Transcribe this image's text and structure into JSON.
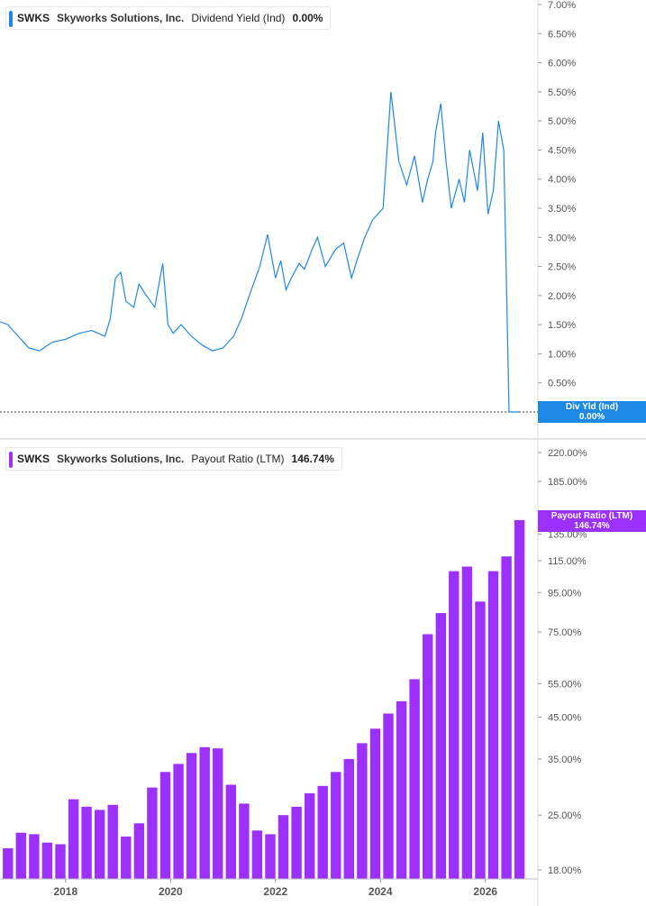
{
  "colors": {
    "yield": "#1e88e5",
    "payout": "#9b30ff",
    "axis_text": "#555555",
    "divider": "#cccccc"
  },
  "top_panel": {
    "legend": {
      "ticker": "SWKS",
      "company": "Skyworks Solutions, Inc.",
      "metric": "Dividend Yield (Ind)",
      "value": "0.00%"
    },
    "tag": {
      "label": "Div Yld (Ind)",
      "value": "0.00%"
    },
    "y_ticks": [
      "7.00%",
      "6.50%",
      "6.00%",
      "5.50%",
      "5.00%",
      "4.50%",
      "4.00%",
      "3.50%",
      "3.00%",
      "2.50%",
      "2.00%",
      "1.50%",
      "1.00%",
      "0.50%",
      "0.00%"
    ]
  },
  "bottom_panel": {
    "legend": {
      "ticker": "SWKS",
      "company": "Skyworks Solutions, Inc.",
      "metric": "Payout Ratio (LTM)",
      "value": "146.74%"
    },
    "tag": {
      "label": "Payout Ratio (LTM)",
      "value": "146.74%"
    },
    "y_ticks": [
      "220.00%",
      "185.00%",
      "135.00%",
      "115.00%",
      "95.00%",
      "75.00%",
      "55.00%",
      "45.00%",
      "35.00%",
      "25.00%",
      "18.00%"
    ]
  },
  "x_ticks": [
    "2018",
    "2020",
    "2022",
    "2024",
    "2026"
  ],
  "chart_data": [
    {
      "type": "line",
      "title": "SWKS Skyworks Solutions, Inc. Dividend Yield (Ind)",
      "ylim": [
        0,
        7
      ],
      "x_range": [
        2016.75,
        2027.0
      ],
      "series": [
        {
          "name": "Dividend Yield (Ind)",
          "x": [
            2016.75,
            2016.9,
            2017.1,
            2017.3,
            2017.5,
            2017.75,
            2018.0,
            2018.25,
            2018.5,
            2018.75,
            2018.85,
            2018.95,
            2019.05,
            2019.15,
            2019.3,
            2019.4,
            2019.5,
            2019.7,
            2019.85,
            2019.95,
            2020.05,
            2020.2,
            2020.3,
            2020.4,
            2020.6,
            2020.8,
            2021.0,
            2021.2,
            2021.35,
            2021.5,
            2021.7,
            2021.85,
            2022.0,
            2022.1,
            2022.2,
            2022.3,
            2022.45,
            2022.55,
            2022.7,
            2022.8,
            2022.95,
            2023.05,
            2023.15,
            2023.3,
            2023.45,
            2023.55,
            2023.7,
            2023.85,
            2024.05,
            2024.2,
            2024.35,
            2024.5,
            2024.65,
            2024.8,
            2024.9,
            2025.0,
            2025.05,
            2025.15,
            2025.25,
            2025.35,
            2025.5,
            2025.6,
            2025.7,
            2025.85,
            2025.95,
            2026.05,
            2026.15,
            2026.25,
            2026.35,
            2026.45,
            2026.5,
            2026.55,
            2026.6,
            2026.62,
            2026.65
          ],
          "values": [
            1.55,
            1.5,
            1.3,
            1.1,
            1.05,
            1.2,
            1.25,
            1.35,
            1.4,
            1.3,
            1.6,
            2.3,
            2.4,
            1.9,
            1.8,
            2.2,
            2.05,
            1.8,
            2.55,
            1.5,
            1.35,
            1.5,
            1.4,
            1.3,
            1.15,
            1.05,
            1.1,
            1.3,
            1.6,
            2.0,
            2.5,
            3.05,
            2.3,
            2.6,
            2.1,
            2.3,
            2.55,
            2.45,
            2.8,
            3.0,
            2.5,
            2.65,
            2.8,
            2.9,
            2.3,
            2.6,
            3.0,
            3.3,
            3.5,
            5.5,
            4.3,
            3.9,
            4.4,
            3.6,
            4.0,
            4.3,
            4.8,
            5.3,
            4.3,
            3.5,
            4.0,
            3.6,
            4.5,
            3.8,
            4.8,
            3.4,
            3.8,
            5.0,
            4.5,
            0.0,
            0.0,
            0.0,
            0.0,
            0.0,
            0.0
          ]
        }
      ]
    },
    {
      "type": "bar",
      "title": "SWKS Skyworks Solutions, Inc. Payout Ratio (LTM)",
      "ylim": [
        18,
        220
      ],
      "y_scale": "log",
      "x_range": [
        2016.75,
        2027.0
      ],
      "series": [
        {
          "name": "Payout Ratio (LTM)",
          "x": [
            2016.9,
            2017.15,
            2017.4,
            2017.65,
            2017.9,
            2018.15,
            2018.4,
            2018.65,
            2018.9,
            2019.15,
            2019.4,
            2019.65,
            2019.9,
            2020.15,
            2020.4,
            2020.65,
            2020.9,
            2021.15,
            2021.4,
            2021.65,
            2021.9,
            2022.15,
            2022.4,
            2022.65,
            2022.9,
            2023.15,
            2023.4,
            2023.65,
            2023.9,
            2024.15,
            2024.4,
            2024.65,
            2024.9,
            2025.15,
            2025.4,
            2025.65,
            2025.9,
            2026.15,
            2026.4,
            2026.65
          ],
          "values": [
            20.5,
            22.5,
            22.3,
            21.2,
            21.0,
            27.5,
            26.3,
            25.8,
            26.6,
            22.0,
            23.8,
            29.5,
            32.4,
            34.0,
            36.3,
            37.6,
            37.3,
            30.0,
            26.8,
            22.8,
            22.3,
            25.0,
            26.3,
            28.5,
            29.8,
            32.4,
            35.0,
            38.5,
            42.0,
            46.0,
            49.5,
            56.5,
            74.0,
            84.0,
            108.0,
            111.0,
            90.0,
            108.0,
            118.0,
            146.74
          ]
        }
      ]
    }
  ]
}
